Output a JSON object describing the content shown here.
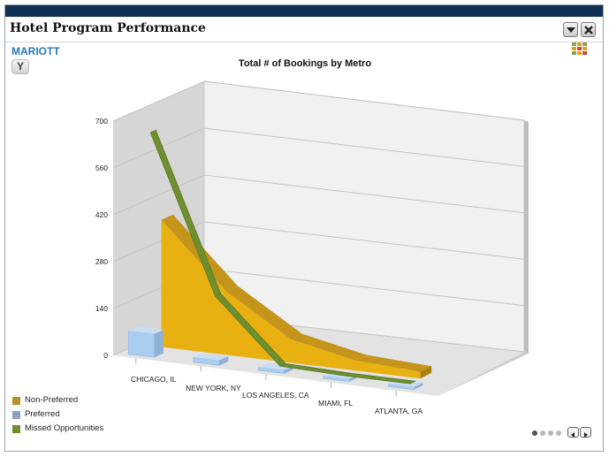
{
  "panel": {
    "title": "Hotel Program Performance",
    "subtitle": "MARIOTT",
    "filter_label": "Y",
    "icons": {
      "collapse": "triangle-down-icon",
      "close": "close-icon",
      "legend_toggle": "legend-grid-icon",
      "filter": "filter-icon"
    }
  },
  "chart_data": {
    "type": "area",
    "title": "Total # of Bookings by Metro",
    "xlabel": "",
    "ylabel": "",
    "categories": [
      "CHICAGO, IL",
      "NEW YORK, NY",
      "LOS ANGELES, CA",
      "MIAMI, FL",
      "ATLANTA, GA"
    ],
    "ylim": [
      0,
      700
    ],
    "yticks": [
      0,
      140,
      280,
      420,
      560,
      700
    ],
    "grid": true,
    "three_d": true,
    "legend_position": "bottom-left",
    "series": [
      {
        "name": "Non-Preferred",
        "render": "area",
        "color": "#e8b010",
        "values": [
          380,
          190,
          70,
          30,
          20
        ]
      },
      {
        "name": "Preferred",
        "render": "bar",
        "color": "#a9cdee",
        "values": [
          70,
          15,
          10,
          8,
          8
        ]
      },
      {
        "name": "Missed Opportunities",
        "render": "line",
        "color": "#6e8f2e",
        "values": [
          655,
          190,
          5,
          0,
          0
        ]
      }
    ]
  },
  "legend_colors": {
    "Non-Preferred": "#b8902a",
    "Preferred": "#8aa2bd",
    "Missed Opportunities": "#6e8f2e"
  },
  "pager": {
    "pages": 4,
    "current": 1
  }
}
